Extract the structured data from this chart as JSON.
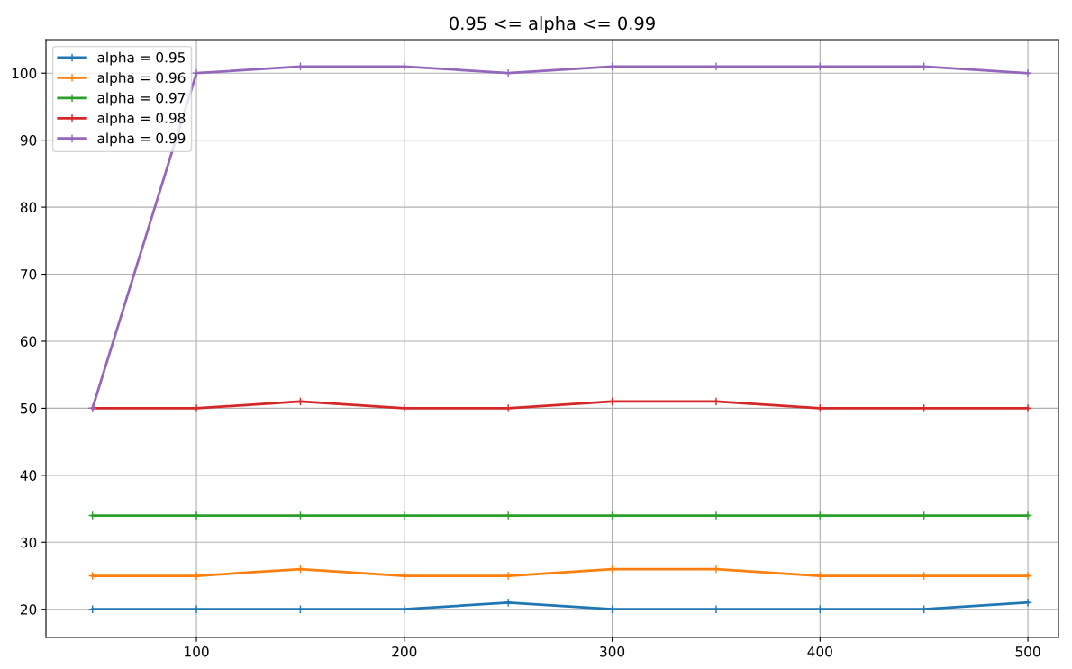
{
  "chart_data": {
    "type": "line",
    "title": "0.95 <= alpha <= 0.99",
    "x": [
      50,
      100,
      150,
      200,
      250,
      300,
      350,
      400,
      450,
      500
    ],
    "series": [
      {
        "name": "alpha = 0.95",
        "color": "#1f77b4",
        "values": [
          20,
          20,
          20,
          20,
          21,
          20,
          20,
          20,
          20,
          21
        ]
      },
      {
        "name": "alpha = 0.96",
        "color": "#ff7f0e",
        "values": [
          25,
          25,
          26,
          25,
          25,
          26,
          26,
          25,
          25,
          25
        ]
      },
      {
        "name": "alpha = 0.97",
        "color": "#2ca02c",
        "values": [
          34,
          34,
          34,
          34,
          34,
          34,
          34,
          34,
          34,
          34
        ]
      },
      {
        "name": "alpha = 0.98",
        "color": "#d62728",
        "values": [
          50,
          50,
          51,
          50,
          50,
          51,
          51,
          50,
          50,
          50
        ]
      },
      {
        "name": "alpha = 0.99",
        "color": "#9467bd",
        "values": [
          50,
          100,
          101,
          101,
          100,
          101,
          101,
          101,
          101,
          100
        ]
      }
    ],
    "xlim": [
      27.6,
      514.7
    ],
    "ylim": [
      15.8,
      105
    ],
    "xticks": [
      100,
      200,
      300,
      400,
      500
    ],
    "yticks": [
      20,
      30,
      40,
      50,
      60,
      70,
      80,
      90,
      100
    ],
    "grid": true,
    "legend": "top left",
    "marker": "cross",
    "line_style": "solid"
  }
}
